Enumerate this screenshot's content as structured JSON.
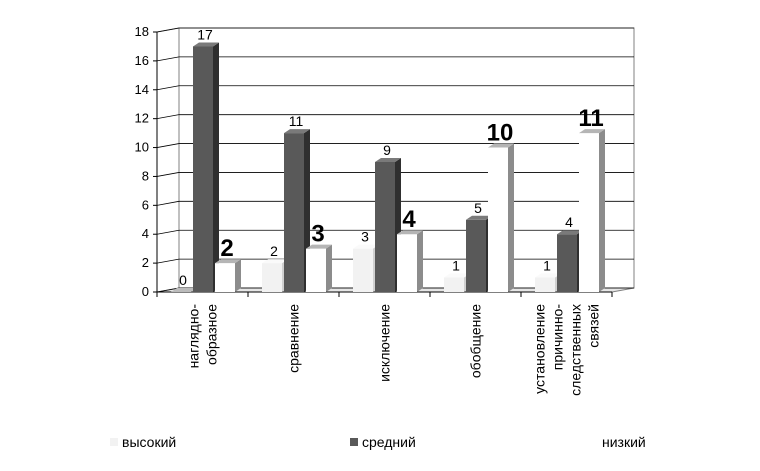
{
  "chart_data": {
    "type": "bar",
    "categories": [
      [
        "наглядно-",
        "образное"
      ],
      [
        "сравнение"
      ],
      [
        "исключение"
      ],
      [
        "обобщение"
      ],
      [
        "установление",
        "причинно-",
        "следственных",
        "связей"
      ]
    ],
    "series": [
      {
        "name": "высокий",
        "values": [
          0,
          2,
          3,
          1,
          1
        ],
        "labels": [
          "0",
          "2",
          "3",
          "1",
          "1"
        ],
        "color": "#f2f2f2"
      },
      {
        "name": "средний",
        "values": [
          17,
          11,
          9,
          5,
          4
        ],
        "labels": [
          "17",
          "11",
          "9",
          "5",
          "4"
        ],
        "color": "#595959"
      },
      {
        "name": "низкий",
        "values": [
          2,
          3,
          4,
          10,
          11
        ],
        "labels": [
          "2",
          "3",
          "4",
          "10",
          "11"
        ],
        "color": "#ffffff"
      }
    ],
    "ylim": [
      0,
      18
    ],
    "yticks": [
      "0",
      "2",
      "4",
      "6",
      "8",
      "10",
      "12",
      "14",
      "16",
      "18"
    ],
    "grid": true,
    "legend_position": "bottom",
    "style": "3d"
  }
}
